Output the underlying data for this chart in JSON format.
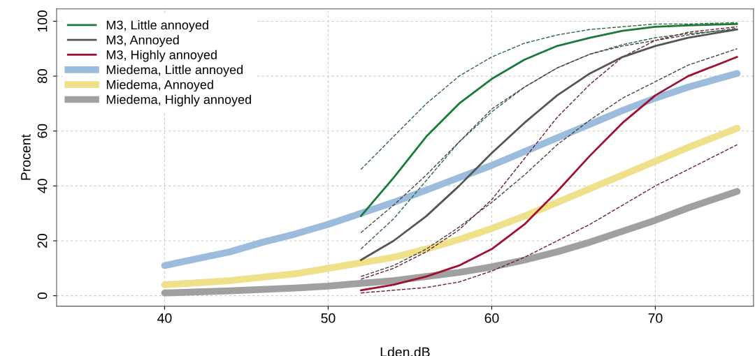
{
  "chart_data": {
    "type": "line",
    "xlabel": "Lden.dB",
    "ylabel": "Procent",
    "xlim": [
      33.4,
      76
    ],
    "ylim": [
      -3.8,
      104.5
    ],
    "xticks": [
      40,
      50,
      60,
      70
    ],
    "yticks": [
      0,
      20,
      40,
      60,
      80,
      100
    ],
    "grid": true,
    "legend": "top left",
    "line_style": "solid",
    "marker": "none",
    "series": [
      {
        "color": "#2a6a3a",
        "line_style": "dashed",
        "x": [
          52,
          54,
          56,
          58,
          60,
          62,
          64,
          66,
          68,
          70,
          72,
          75
        ],
        "values": [
          17,
          28,
          42,
          56,
          67,
          76,
          83,
          88,
          91.5,
          94,
          95.5,
          97
        ]
      },
      {
        "color": "#2a6a3a",
        "line_style": "dashed",
        "x": [
          52,
          54,
          56,
          58,
          60,
          62,
          64,
          66,
          68,
          70,
          72,
          75
        ],
        "values": [
          46,
          58,
          70,
          80,
          87,
          92,
          95,
          97,
          98,
          99,
          99,
          99.5
        ]
      },
      {
        "color": "#444444",
        "line_style": "dashed",
        "x": [
          52,
          54,
          56,
          58,
          60,
          62,
          64,
          66,
          68,
          70,
          72,
          75
        ],
        "values": [
          7,
          11,
          17,
          25,
          34,
          44,
          55,
          64,
          72,
          78,
          84,
          90
        ]
      },
      {
        "color": "#444444",
        "line_style": "dashed",
        "x": [
          52,
          54,
          56,
          58,
          60,
          62,
          64,
          66,
          68,
          70,
          72,
          75
        ],
        "values": [
          23,
          33,
          44,
          56,
          68,
          76,
          83,
          88,
          91,
          93,
          95,
          97.5
        ]
      },
      {
        "color": "#6a2030",
        "line_style": "dashed",
        "x": [
          52,
          54,
          56,
          58,
          60,
          62,
          64,
          66,
          68,
          70,
          72,
          75
        ],
        "values": [
          1,
          2,
          3,
          5,
          9,
          14,
          20,
          26,
          33,
          40,
          46,
          55
        ]
      },
      {
        "color": "#6a2030",
        "line_style": "dashed",
        "x": [
          52,
          54,
          56,
          58,
          60,
          62,
          64,
          66,
          68,
          70,
          72,
          75
        ],
        "values": [
          6,
          10,
          16,
          24,
          35,
          50,
          65,
          77,
          87,
          93,
          96,
          98
        ]
      },
      {
        "name": "M3, Little annoyed",
        "color": "#1a7a3a",
        "x": [
          52,
          54,
          56,
          58,
          60,
          62,
          64,
          66,
          68,
          70,
          72,
          75
        ],
        "values": [
          29,
          43,
          58,
          70,
          79,
          86,
          91,
          94,
          96.5,
          98,
          98.5,
          99
        ]
      },
      {
        "name": "M3, Annoyed",
        "color": "#555555",
        "x": [
          52,
          54,
          56,
          58,
          60,
          62,
          64,
          66,
          68,
          70,
          72,
          75
        ],
        "values": [
          13,
          20,
          29,
          40,
          52,
          63,
          73,
          81,
          87,
          91,
          94,
          97
        ]
      },
      {
        "name": "M3, Highly annoyed",
        "color": "#a01030",
        "x": [
          52,
          54,
          56,
          58,
          60,
          62,
          64,
          66,
          68,
          70,
          72,
          75
        ],
        "values": [
          2,
          4,
          7,
          11,
          17,
          26,
          38,
          51,
          63,
          73,
          80,
          87
        ]
      },
      {
        "name": "Miedema, Little annoyed",
        "color": "#9bbcdc",
        "x": [
          40,
          42,
          44,
          46,
          48,
          50,
          52,
          54,
          56,
          58,
          60,
          62,
          64,
          66,
          68,
          70,
          72,
          75
        ],
        "values": [
          11,
          13.5,
          16,
          19.5,
          22.5,
          26,
          30,
          34,
          38.5,
          43,
          47.5,
          52.5,
          57.5,
          62.5,
          67.5,
          72,
          76,
          81
        ]
      },
      {
        "name": "Miedema, Annoyed",
        "color": "#efe08a",
        "x": [
          40,
          44,
          48,
          50,
          52,
          54,
          56,
          58,
          60,
          62,
          64,
          66,
          68,
          70,
          72,
          75
        ],
        "values": [
          4,
          5.5,
          8,
          10,
          12,
          14,
          17,
          20.5,
          24.5,
          29,
          34,
          39,
          44,
          49,
          54,
          61
        ]
      },
      {
        "name": "Miedema, Highly annoyed",
        "color": "#a0a0a0",
        "x": [
          40,
          44,
          48,
          50,
          52,
          54,
          56,
          58,
          60,
          62,
          64,
          66,
          68,
          70,
          72,
          75
        ],
        "values": [
          1,
          1.8,
          2.8,
          3.5,
          4.5,
          5.5,
          7,
          8.5,
          10.5,
          13,
          16,
          19.5,
          23.5,
          27.5,
          32,
          38
        ]
      }
    ]
  }
}
